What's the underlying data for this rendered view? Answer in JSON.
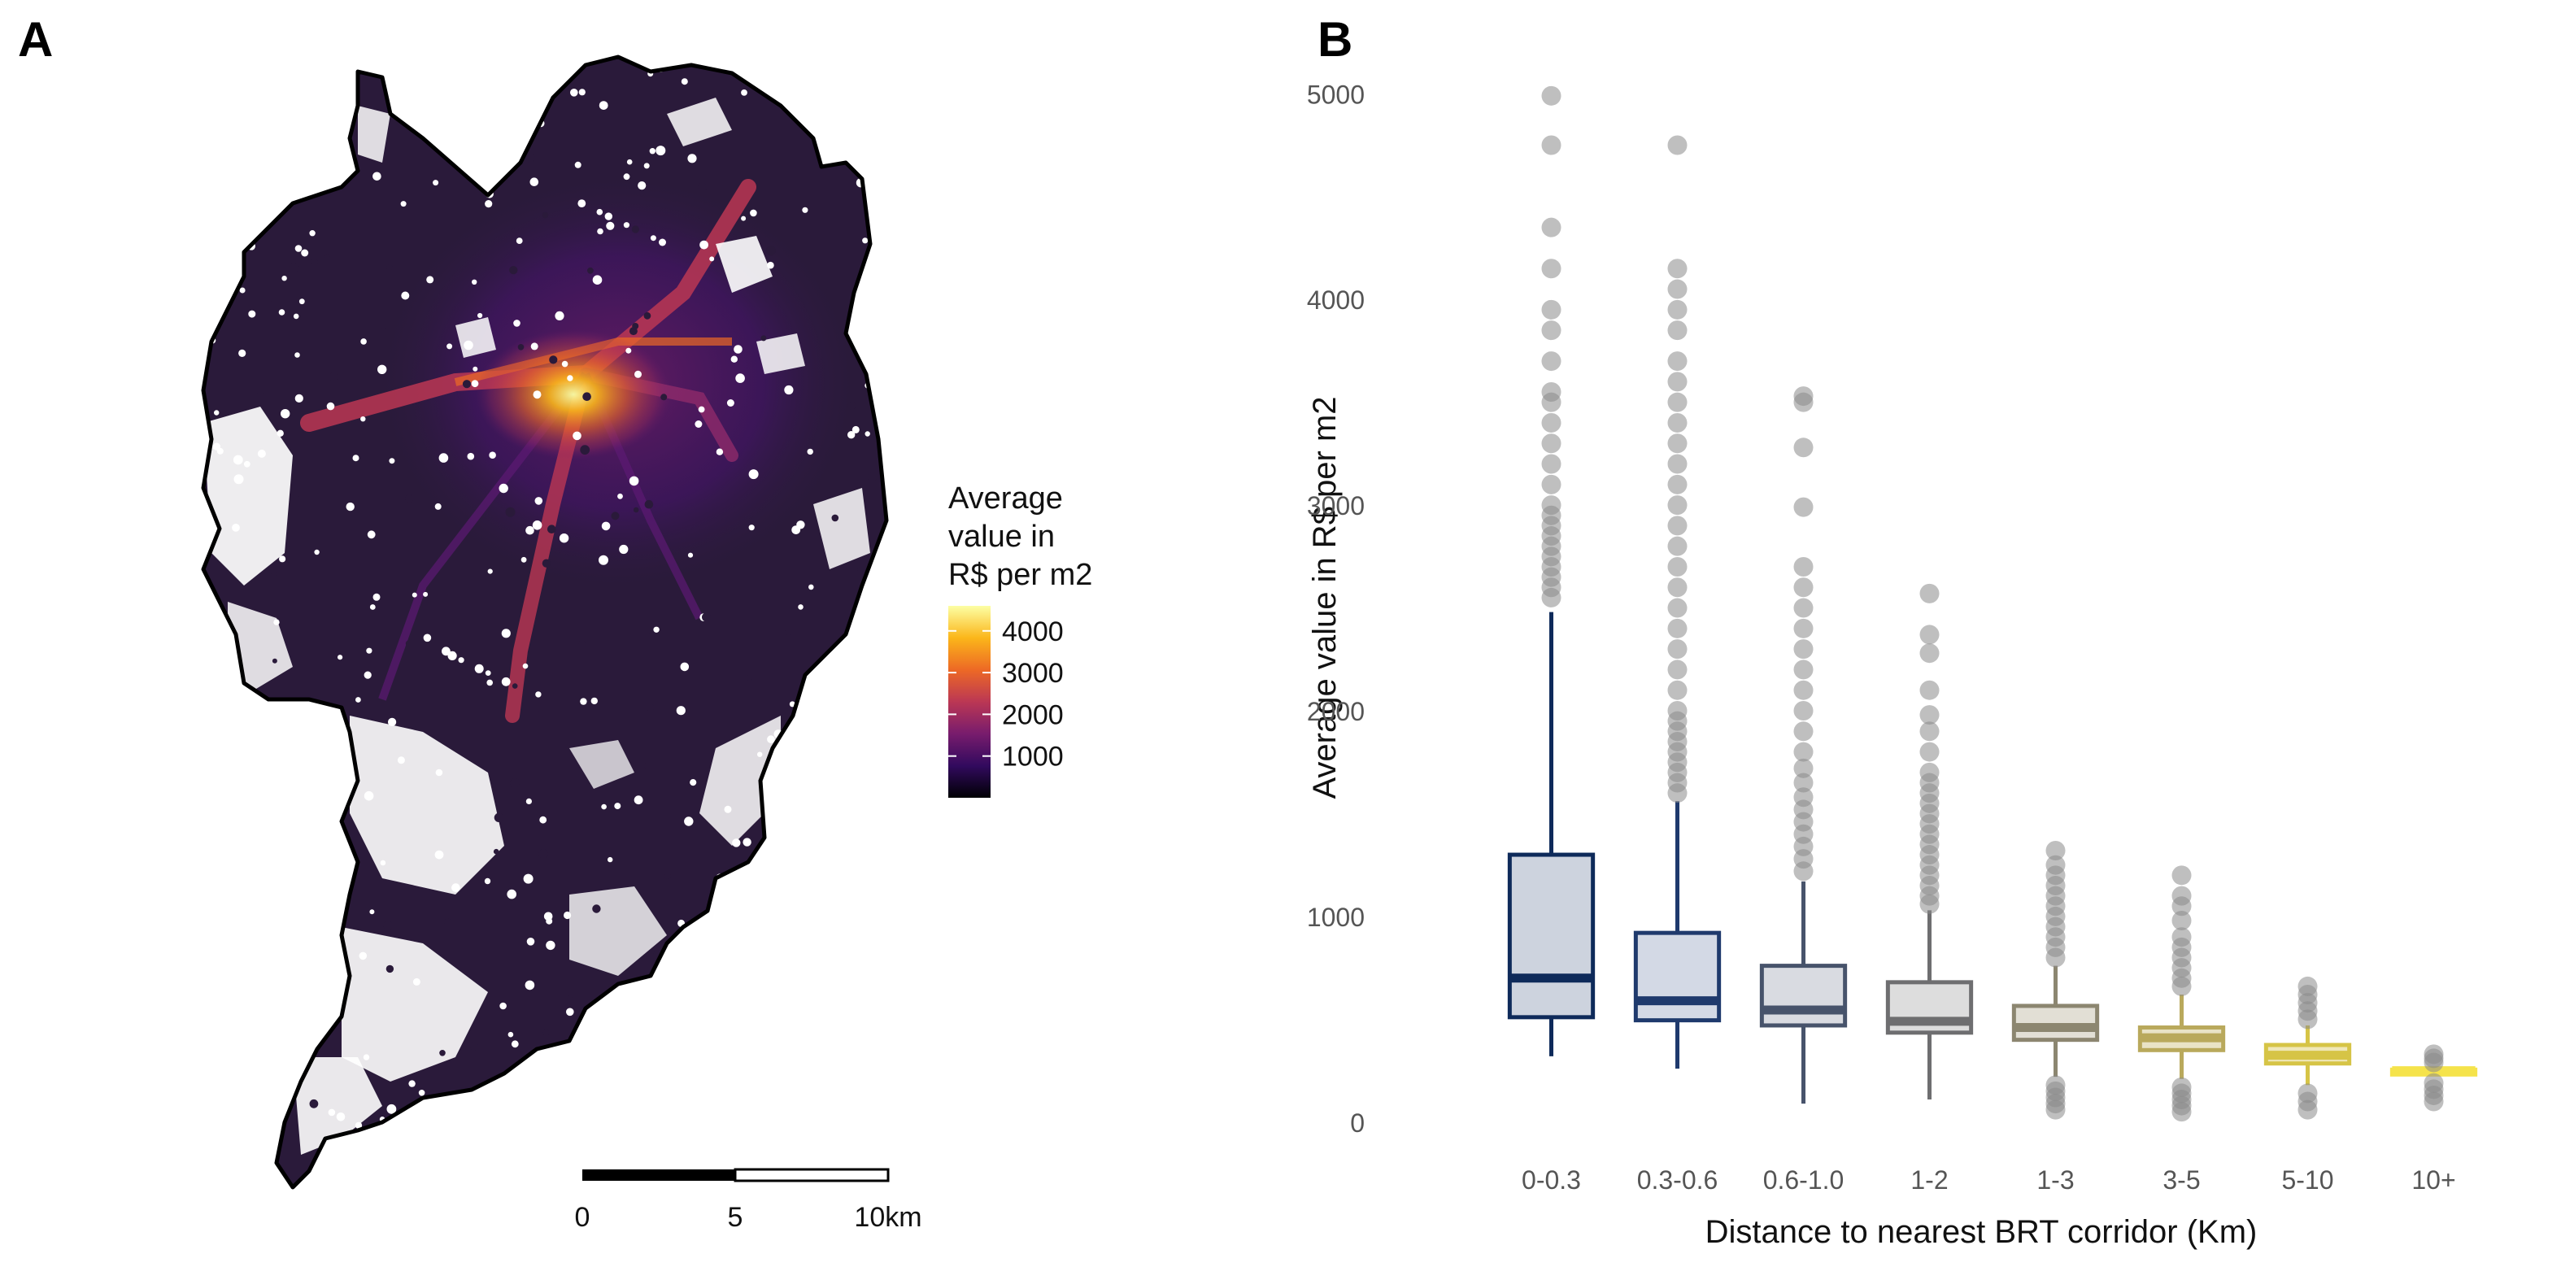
{
  "panels": {
    "a": {
      "label": "A"
    },
    "b": {
      "label": "B"
    }
  },
  "map": {
    "legend": {
      "title_lines": [
        "Average",
        "value in",
        "R$ per m2"
      ],
      "ticks": [
        "4000",
        "3000",
        "2000",
        "1000"
      ],
      "tick_values": [
        4000,
        3000,
        2000,
        1000
      ],
      "range": [
        0,
        4600
      ],
      "colors": [
        "#000004",
        "#320a5e",
        "#781c6d",
        "#bb3754",
        "#ed6925",
        "#fbb61a",
        "#fcffa4"
      ]
    },
    "scalebar": {
      "labels": [
        "0",
        "5",
        "10km"
      ]
    },
    "colors": {
      "outline": "#000000",
      "fill_dark": "#2a1a3a",
      "gap": "#ffffff"
    }
  },
  "chart_data": {
    "type": "box",
    "title": "",
    "xlabel": "Distance to nearest BRT corridor (Km)",
    "ylabel": "Average value in R$ per m2",
    "ylim": [
      -60,
      5100
    ],
    "yticks": [
      0,
      1000,
      2000,
      3000,
      4000,
      5000
    ],
    "grid": false,
    "categories": [
      "0-0.3",
      "0.3-0.6",
      "0.6-1.0",
      "1-2",
      "1-3",
      "3-5",
      "5-10",
      "10+"
    ],
    "boxes": [
      {
        "category": "0-0.3",
        "whisker_low": 320,
        "q1": 510,
        "median": 700,
        "q3": 1300,
        "whisker_high": 2480,
        "outliers": [
          2550,
          2600,
          2650,
          2700,
          2750,
          2800,
          2850,
          2900,
          2950,
          3000,
          3100,
          3200,
          3300,
          3400,
          3500,
          3550,
          3700,
          3850,
          3950,
          4150,
          4350,
          4750,
          4990
        ],
        "color": "#0e2a5a",
        "fill": "#cdd3de"
      },
      {
        "category": "0.3-0.6",
        "whisker_low": 260,
        "q1": 495,
        "median": 590,
        "q3": 920,
        "whisker_high": 1560,
        "outliers": [
          1600,
          1650,
          1700,
          1750,
          1800,
          1850,
          1900,
          1950,
          2000,
          2100,
          2200,
          2300,
          2400,
          2500,
          2600,
          2700,
          2800,
          2900,
          3000,
          3100,
          3200,
          3300,
          3400,
          3500,
          3600,
          3700,
          3850,
          3950,
          4050,
          4150,
          4750
        ],
        "color": "#1f3a6d",
        "fill": "#d3d9e5"
      },
      {
        "category": "0.6-1.0",
        "whisker_low": 90,
        "q1": 470,
        "median": 545,
        "q3": 760,
        "whisker_high": 1170,
        "outliers": [
          1220,
          1280,
          1340,
          1400,
          1460,
          1520,
          1580,
          1650,
          1720,
          1800,
          1900,
          2000,
          2100,
          2200,
          2300,
          2400,
          2500,
          2600,
          2700,
          2990,
          3280,
          3500,
          3530
        ],
        "color": "#47536b",
        "fill": "#d9dbe1"
      },
      {
        "category": "1-2",
        "whisker_low": 110,
        "q1": 435,
        "median": 490,
        "q3": 680,
        "whisker_high": 1030,
        "outliers": [
          1060,
          1100,
          1150,
          1200,
          1250,
          1300,
          1350,
          1400,
          1450,
          1500,
          1550,
          1600,
          1650,
          1700,
          1800,
          1900,
          1980,
          2100,
          2280,
          2370,
          2570
        ],
        "color": "#6e6e70",
        "fill": "#dddddd"
      },
      {
        "category": "1-3",
        "whisker_low": 220,
        "q1": 400,
        "median": 460,
        "q3": 565,
        "whisker_high": 760,
        "outliers": [
          60,
          90,
          120,
          150,
          180,
          800,
          850,
          900,
          950,
          1000,
          1050,
          1100,
          1150,
          1200,
          1250,
          1320
        ],
        "color": "#8c8670",
        "fill": "#e2dfd5"
      },
      {
        "category": "3-5",
        "whisker_low": 210,
        "q1": 350,
        "median": 410,
        "q3": 460,
        "whisker_high": 620,
        "outliers": [
          50,
          80,
          110,
          140,
          170,
          660,
          700,
          750,
          800,
          850,
          900,
          980,
          1050,
          1100,
          1200
        ],
        "color": "#b9a95c",
        "fill": "#e9e3c6"
      },
      {
        "category": "5-10",
        "whisker_low": 180,
        "q1": 285,
        "median": 325,
        "q3": 375,
        "whisker_high": 470,
        "outliers": [
          60,
          100,
          140,
          500,
          540,
          580,
          620,
          660
        ],
        "color": "#d6c446",
        "fill": "#efe7b8"
      },
      {
        "category": "10+",
        "whisker_low": 240,
        "q1": 245,
        "median": 250,
        "q3": 255,
        "whisker_high": 260,
        "outliers": [
          100,
          130,
          160,
          190,
          290,
          310,
          330
        ],
        "color": "#f5e34b",
        "fill": "#f8ee9c"
      }
    ],
    "outlier_color": "#8a8a8a"
  }
}
